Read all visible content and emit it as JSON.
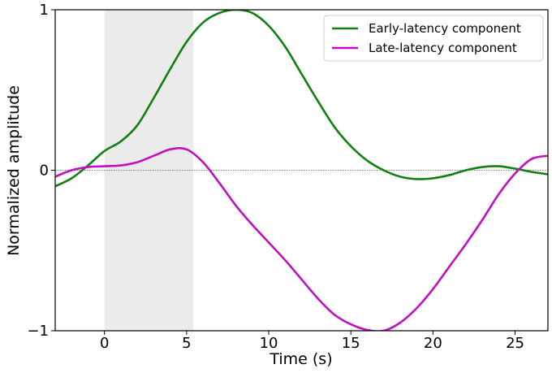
{
  "chart_data": {
    "type": "line",
    "xlabel": "Time (s)",
    "ylabel": "Normalized amplitude",
    "xlim": [
      -3,
      27
    ],
    "ylim": [
      -1,
      1
    ],
    "xticks": [
      0,
      5,
      10,
      15,
      20,
      25
    ],
    "yticks": [
      {
        "value": -1,
        "label": "−1"
      },
      {
        "value": 0,
        "label": "0"
      },
      {
        "value": 1,
        "label": "1"
      }
    ],
    "shaded_region": {
      "x0": 0,
      "x1": 5.4,
      "color": "#ebebeb"
    },
    "zero_line": {
      "y": 0,
      "style": "dotted",
      "color": "#555555"
    },
    "legend_position": "top-right",
    "grid": false,
    "series": [
      {
        "name": "Early-latency component",
        "color": "#108010",
        "x": [
          -3,
          -2,
          -1,
          0,
          1,
          2,
          3,
          4,
          5,
          6,
          7,
          8,
          9,
          10,
          11,
          12,
          13,
          14,
          15,
          16,
          17,
          18,
          19,
          20,
          21,
          22,
          23,
          24,
          25,
          26,
          27
        ],
        "y": [
          -0.1,
          -0.05,
          0.03,
          0.12,
          0.18,
          0.28,
          0.45,
          0.63,
          0.8,
          0.92,
          0.98,
          1.0,
          0.98,
          0.9,
          0.77,
          0.6,
          0.43,
          0.27,
          0.15,
          0.06,
          0.0,
          -0.04,
          -0.055,
          -0.05,
          -0.03,
          0.0,
          0.02,
          0.025,
          0.01,
          -0.01,
          -0.025
        ]
      },
      {
        "name": "Late-latency component",
        "color": "#c010c0",
        "x": [
          -3,
          -2,
          -1,
          0,
          1,
          2,
          3,
          4,
          5,
          6,
          7,
          8,
          9,
          10,
          11,
          12,
          13,
          14,
          15,
          16,
          17,
          18,
          19,
          20,
          21,
          22,
          23,
          24,
          25,
          26,
          27
        ],
        "y": [
          -0.04,
          0.0,
          0.02,
          0.025,
          0.03,
          0.05,
          0.09,
          0.13,
          0.13,
          0.05,
          -0.08,
          -0.22,
          -0.34,
          -0.45,
          -0.56,
          -0.68,
          -0.8,
          -0.9,
          -0.96,
          -0.995,
          -1.0,
          -0.95,
          -0.86,
          -0.74,
          -0.6,
          -0.46,
          -0.31,
          -0.15,
          -0.02,
          0.07,
          0.09
        ]
      }
    ]
  }
}
